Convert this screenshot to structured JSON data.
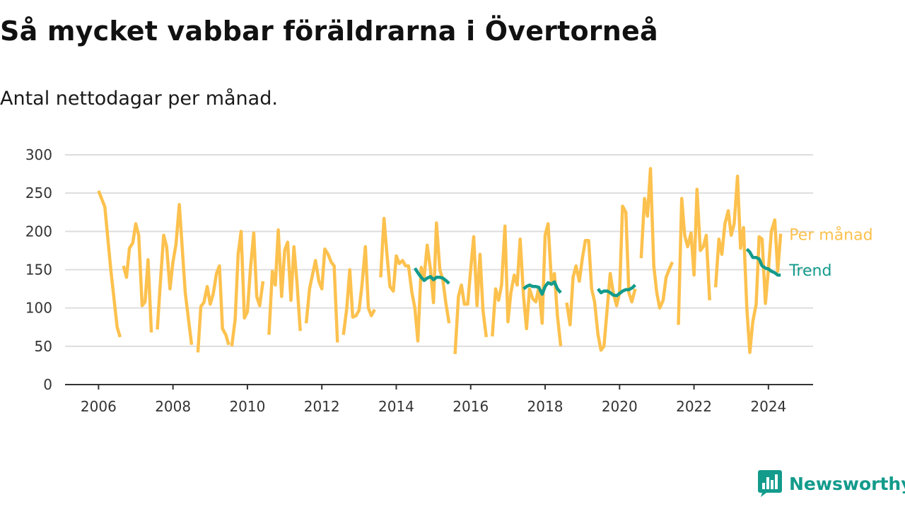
{
  "title": "Så mycket vabbar föräldrarna i Övertorneå",
  "subtitle": "Antal nettodagar per månad.",
  "brand": {
    "name": "Newsworthy",
    "icon": "chart-bubble-icon"
  },
  "colors": {
    "per_month": "#fcc14e",
    "trend": "#139b8c",
    "grid": "#dddddd",
    "axis": "#333333"
  },
  "chart_data": {
    "type": "line",
    "xlim": [
      2005.1,
      2025.2
    ],
    "ylim": [
      0,
      300
    ],
    "yticks": [
      0,
      50,
      100,
      150,
      200,
      250,
      300
    ],
    "xticks": [
      2006,
      2008,
      2010,
      2012,
      2014,
      2016,
      2018,
      2020,
      2022,
      2024
    ],
    "grid": true,
    "series": [
      {
        "name": "Per månad",
        "color": "#fcc14e",
        "segments": [
          [
            [
              2006.0,
              253
            ],
            [
              2006.17,
              232
            ],
            [
              2006.33,
              150
            ],
            [
              2006.5,
              75
            ],
            [
              2006.58,
              62
            ]
          ],
          [
            [
              2006.67,
              155
            ],
            [
              2006.75,
              140
            ],
            [
              2006.83,
              178
            ],
            [
              2006.92,
              185
            ],
            [
              2007.0,
              210
            ],
            [
              2007.08,
              195
            ],
            [
              2007.17,
              103
            ],
            [
              2007.25,
              108
            ],
            [
              2007.33,
              163
            ],
            [
              2007.42,
              68
            ]
          ],
          [
            [
              2007.58,
              72
            ],
            [
              2007.67,
              140
            ],
            [
              2007.75,
              195
            ],
            [
              2007.83,
              180
            ],
            [
              2007.92,
              125
            ],
            [
              2008.0,
              160
            ],
            [
              2008.08,
              183
            ],
            [
              2008.17,
              235
            ],
            [
              2008.33,
              120
            ],
            [
              2008.5,
              52
            ]
          ],
          [
            [
              2008.67,
              42
            ],
            [
              2008.75,
              102
            ],
            [
              2008.83,
              107
            ],
            [
              2008.92,
              128
            ],
            [
              2009.0,
              105
            ],
            [
              2009.08,
              118
            ],
            [
              2009.17,
              145
            ],
            [
              2009.25,
              155
            ],
            [
              2009.33,
              73
            ],
            [
              2009.42,
              65
            ],
            [
              2009.5,
              52
            ]
          ],
          [
            [
              2009.58,
              50
            ],
            [
              2009.67,
              85
            ],
            [
              2009.75,
              170
            ],
            [
              2009.83,
              200
            ],
            [
              2009.92,
              87
            ],
            [
              2010.0,
              95
            ],
            [
              2010.08,
              150
            ],
            [
              2010.17,
              198
            ],
            [
              2010.25,
              115
            ],
            [
              2010.33,
              103
            ],
            [
              2010.42,
              135
            ]
          ],
          [
            [
              2010.58,
              65
            ],
            [
              2010.67,
              148
            ],
            [
              2010.75,
              130
            ],
            [
              2010.83,
              202
            ],
            [
              2010.92,
              115
            ],
            [
              2011.0,
              175
            ],
            [
              2011.08,
              186
            ],
            [
              2011.17,
              110
            ],
            [
              2011.25,
              180
            ],
            [
              2011.33,
              135
            ],
            [
              2011.42,
              70
            ]
          ],
          [
            [
              2011.58,
              80
            ],
            [
              2011.67,
              125
            ],
            [
              2011.83,
              162
            ],
            [
              2011.92,
              135
            ],
            [
              2012.0,
              125
            ],
            [
              2012.08,
              177
            ],
            [
              2012.17,
              170
            ],
            [
              2012.25,
              160
            ],
            [
              2012.33,
              155
            ],
            [
              2012.42,
              55
            ]
          ],
          [
            [
              2012.58,
              65
            ],
            [
              2012.67,
              100
            ],
            [
              2012.75,
              150
            ],
            [
              2012.83,
              88
            ],
            [
              2012.92,
              90
            ],
            [
              2013.0,
              97
            ],
            [
              2013.08,
              130
            ],
            [
              2013.17,
              180
            ],
            [
              2013.25,
              100
            ],
            [
              2013.33,
              90
            ],
            [
              2013.42,
              98
            ]
          ],
          [
            [
              2013.58,
              140
            ],
            [
              2013.67,
              217
            ],
            [
              2013.75,
              170
            ],
            [
              2013.83,
              128
            ],
            [
              2013.92,
              122
            ],
            [
              2014.0,
              168
            ],
            [
              2014.08,
              158
            ],
            [
              2014.17,
              162
            ],
            [
              2014.25,
              155
            ],
            [
              2014.33,
              155
            ],
            [
              2014.42,
              120
            ],
            [
              2014.5,
              100
            ],
            [
              2014.58,
              57
            ],
            [
              2014.67,
              153
            ],
            [
              2014.75,
              140
            ],
            [
              2014.83,
              182
            ],
            [
              2014.92,
              150
            ],
            [
              2015.0,
              107
            ],
            [
              2015.08,
              211
            ],
            [
              2015.17,
              150
            ],
            [
              2015.25,
              137
            ],
            [
              2015.33,
              107
            ],
            [
              2015.42,
              80
            ]
          ],
          [
            [
              2015.58,
              40
            ],
            [
              2015.67,
              115
            ],
            [
              2015.75,
              130
            ],
            [
              2015.83,
              105
            ],
            [
              2015.92,
              105
            ],
            [
              2016.0,
              150
            ],
            [
              2016.08,
              193
            ],
            [
              2016.17,
              103
            ],
            [
              2016.25,
              170
            ],
            [
              2016.33,
              97
            ],
            [
              2016.42,
              62
            ]
          ],
          [
            [
              2016.58,
              63
            ],
            [
              2016.67,
              125
            ],
            [
              2016.75,
              110
            ],
            [
              2016.83,
              130
            ],
            [
              2016.92,
              207
            ],
            [
              2017.0,
              82
            ],
            [
              2017.08,
              120
            ],
            [
              2017.17,
              143
            ],
            [
              2017.25,
              130
            ],
            [
              2017.33,
              190
            ],
            [
              2017.42,
              115
            ],
            [
              2017.5,
              73
            ],
            [
              2017.58,
              125
            ],
            [
              2017.67,
              112
            ],
            [
              2017.75,
              108
            ],
            [
              2017.83,
              127
            ],
            [
              2017.92,
              80
            ],
            [
              2018.0,
              195
            ],
            [
              2018.08,
              210
            ],
            [
              2018.17,
              133
            ],
            [
              2018.25,
              145
            ],
            [
              2018.33,
              90
            ],
            [
              2018.42,
              50
            ]
          ],
          [
            [
              2018.58,
              107
            ],
            [
              2018.67,
              78
            ],
            [
              2018.75,
              140
            ],
            [
              2018.83,
              155
            ],
            [
              2018.92,
              135
            ],
            [
              2019.0,
              165
            ],
            [
              2019.08,
              188
            ],
            [
              2019.17,
              188
            ],
            [
              2019.25,
              125
            ],
            [
              2019.33,
              108
            ],
            [
              2019.42,
              65
            ],
            [
              2019.5,
              45
            ],
            [
              2019.58,
              50
            ],
            [
              2019.67,
              100
            ],
            [
              2019.75,
              145
            ],
            [
              2019.83,
              120
            ],
            [
              2019.92,
              103
            ],
            [
              2020.0,
              120
            ],
            [
              2020.08,
              233
            ],
            [
              2020.17,
              225
            ],
            [
              2020.25,
              120
            ],
            [
              2020.33,
              108
            ],
            [
              2020.42,
              125
            ]
          ],
          [
            [
              2020.58,
              165
            ],
            [
              2020.67,
              243
            ],
            [
              2020.75,
              220
            ],
            [
              2020.83,
              282
            ],
            [
              2020.92,
              155
            ],
            [
              2021.0,
              120
            ],
            [
              2021.08,
              100
            ],
            [
              2021.17,
              110
            ],
            [
              2021.25,
              140
            ],
            [
              2021.33,
              150
            ],
            [
              2021.42,
              160
            ]
          ],
          [
            [
              2021.58,
              78
            ],
            [
              2021.67,
              243
            ],
            [
              2021.75,
              195
            ],
            [
              2021.83,
              180
            ],
            [
              2021.92,
              198
            ],
            [
              2022.0,
              143
            ],
            [
              2022.08,
              255
            ],
            [
              2022.17,
              175
            ],
            [
              2022.25,
              180
            ],
            [
              2022.33,
              195
            ],
            [
              2022.42,
              110
            ]
          ],
          [
            [
              2022.58,
              127
            ],
            [
              2022.67,
              190
            ],
            [
              2022.75,
              170
            ],
            [
              2022.83,
              210
            ],
            [
              2022.92,
              227
            ],
            [
              2023.0,
              195
            ],
            [
              2023.08,
              210
            ],
            [
              2023.17,
              272
            ],
            [
              2023.25,
              178
            ],
            [
              2023.33,
              205
            ],
            [
              2023.42,
              100
            ],
            [
              2023.5,
              42
            ],
            [
              2023.58,
              82
            ],
            [
              2023.67,
              105
            ],
            [
              2023.75,
              193
            ],
            [
              2023.83,
              190
            ],
            [
              2023.92,
              106
            ],
            [
              2024.0,
              150
            ],
            [
              2024.08,
              200
            ],
            [
              2024.17,
              215
            ],
            [
              2024.25,
              148
            ],
            [
              2024.33,
              197
            ]
          ]
        ]
      },
      {
        "name": "Trend",
        "color": "#139b8c",
        "segments": [
          [
            [
              2014.5,
              152
            ],
            [
              2014.58,
              146
            ],
            [
              2014.67,
              140
            ],
            [
              2014.75,
              136
            ],
            [
              2014.83,
              139
            ],
            [
              2014.92,
              141
            ],
            [
              2015.0,
              137
            ],
            [
              2015.08,
              140
            ],
            [
              2015.17,
              140
            ],
            [
              2015.25,
              139
            ],
            [
              2015.33,
              136
            ],
            [
              2015.42,
              132
            ]
          ],
          [
            [
              2017.42,
              125
            ],
            [
              2017.5,
              128
            ],
            [
              2017.58,
              130
            ],
            [
              2017.67,
              128
            ],
            [
              2017.75,
              128
            ],
            [
              2017.83,
              127
            ],
            [
              2017.92,
              118
            ],
            [
              2018.0,
              128
            ],
            [
              2018.08,
              133
            ],
            [
              2018.17,
              131
            ],
            [
              2018.25,
              134
            ],
            [
              2018.33,
              125
            ],
            [
              2018.42,
              120
            ]
          ],
          [
            [
              2019.42,
              125
            ],
            [
              2019.5,
              120
            ],
            [
              2019.58,
              122
            ],
            [
              2019.67,
              122
            ],
            [
              2019.75,
              120
            ],
            [
              2019.83,
              117
            ],
            [
              2019.92,
              116
            ],
            [
              2020.0,
              119
            ],
            [
              2020.08,
              122
            ],
            [
              2020.17,
              124
            ],
            [
              2020.25,
              124
            ],
            [
              2020.33,
              126
            ],
            [
              2020.42,
              130
            ]
          ],
          [
            [
              2023.42,
              177
            ],
            [
              2023.5,
              173
            ],
            [
              2023.58,
              166
            ],
            [
              2023.67,
              166
            ],
            [
              2023.75,
              164
            ],
            [
              2023.83,
              155
            ],
            [
              2023.92,
              152
            ],
            [
              2024.0,
              151
            ],
            [
              2024.08,
              148
            ],
            [
              2024.17,
              146
            ],
            [
              2024.25,
              143
            ],
            [
              2024.33,
              143
            ]
          ]
        ]
      }
    ]
  }
}
